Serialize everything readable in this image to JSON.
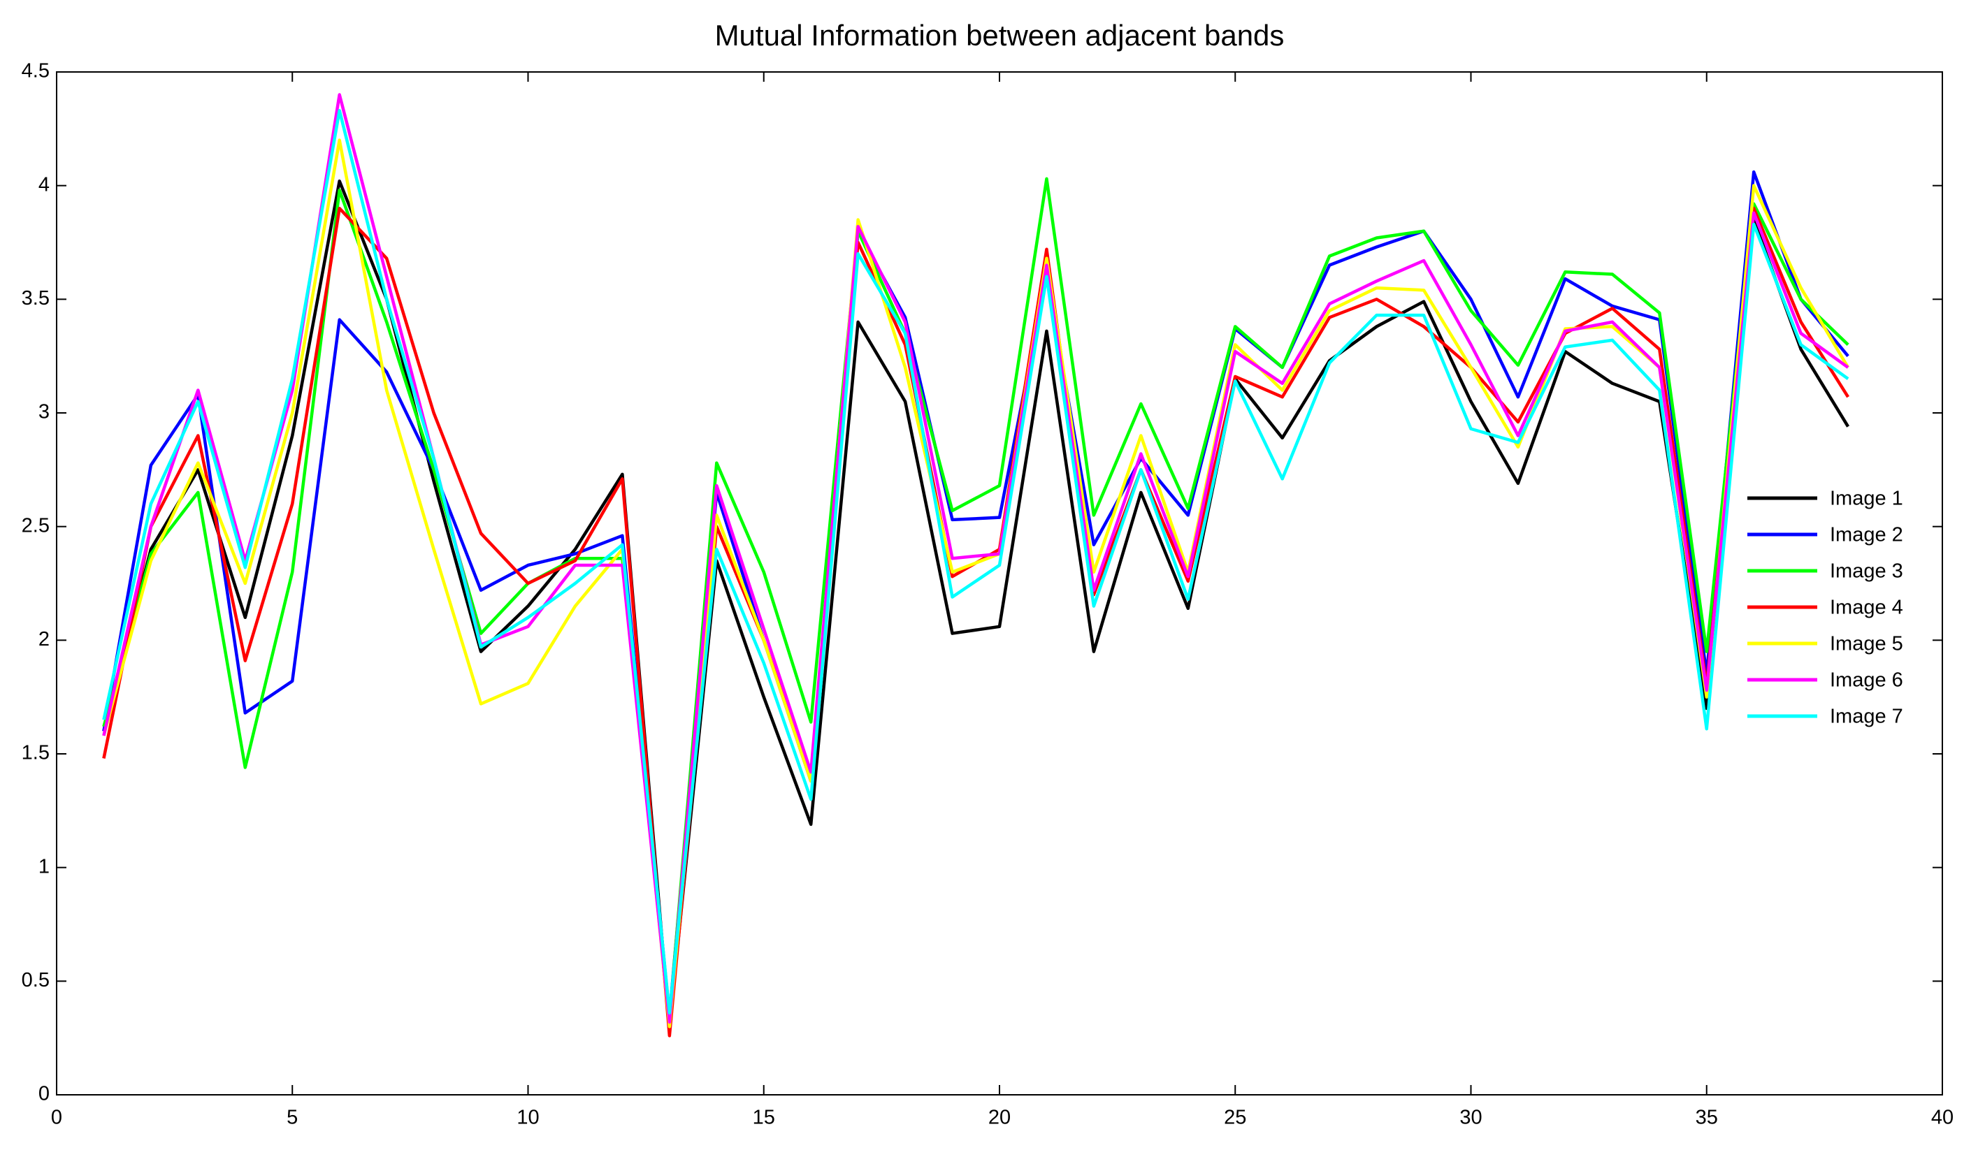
{
  "chart_data": {
    "type": "line",
    "title": "Mutual Information between adjacent bands",
    "x": [
      1,
      2,
      3,
      4,
      5,
      6,
      7,
      8,
      9,
      10,
      11,
      12,
      13,
      14,
      15,
      16,
      17,
      18,
      19,
      20,
      21,
      22,
      23,
      24,
      25,
      26,
      27,
      28,
      29,
      30,
      31,
      32,
      33,
      34,
      35,
      36,
      37,
      38
    ],
    "series": [
      {
        "name": "Image 1",
        "color": "#000000",
        "values": [
          1.6,
          2.4,
          2.75,
          2.1,
          2.9,
          4.02,
          3.5,
          2.7,
          1.95,
          2.15,
          2.4,
          2.73,
          0.3,
          2.35,
          1.75,
          1.19,
          3.4,
          3.05,
          2.03,
          2.06,
          3.36,
          1.95,
          2.65,
          2.14,
          3.15,
          2.89,
          3.23,
          3.38,
          3.49,
          3.05,
          2.69,
          3.27,
          3.13,
          3.05,
          1.7,
          3.85,
          3.28,
          2.94
        ]
      },
      {
        "name": "Image 2",
        "color": "#0000ff",
        "values": [
          1.6,
          2.77,
          3.08,
          1.68,
          1.82,
          3.41,
          3.18,
          2.75,
          2.22,
          2.33,
          2.38,
          2.46,
          0.35,
          2.65,
          2.0,
          1.38,
          3.8,
          3.42,
          2.53,
          2.54,
          3.6,
          2.42,
          2.8,
          2.55,
          3.37,
          3.2,
          3.65,
          3.73,
          3.8,
          3.5,
          3.07,
          3.59,
          3.47,
          3.41,
          1.85,
          4.06,
          3.5,
          3.25
        ]
      },
      {
        "name": "Image 3",
        "color": "#00ff00",
        "values": [
          1.62,
          2.38,
          2.65,
          1.44,
          2.3,
          3.98,
          3.4,
          2.75,
          2.03,
          2.25,
          2.36,
          2.36,
          0.33,
          2.78,
          2.3,
          1.64,
          3.8,
          3.35,
          2.57,
          2.68,
          4.03,
          2.55,
          3.04,
          2.58,
          3.38,
          3.2,
          3.69,
          3.77,
          3.8,
          3.45,
          3.21,
          3.62,
          3.61,
          3.44,
          1.95,
          3.92,
          3.5,
          3.3
        ]
      },
      {
        "name": "Image 4",
        "color": "#ff0000",
        "values": [
          1.48,
          2.5,
          2.9,
          1.91,
          2.6,
          3.9,
          3.68,
          3.0,
          2.47,
          2.25,
          2.35,
          2.71,
          0.26,
          2.5,
          2.0,
          1.4,
          3.75,
          3.3,
          2.28,
          2.4,
          3.72,
          2.2,
          2.75,
          2.26,
          3.16,
          3.07,
          3.42,
          3.5,
          3.38,
          3.2,
          2.96,
          3.35,
          3.46,
          3.28,
          1.8,
          3.9,
          3.4,
          3.07
        ]
      },
      {
        "name": "Image 5",
        "color": "#ffff00",
        "values": [
          1.58,
          2.35,
          2.78,
          2.25,
          3.0,
          4.2,
          3.1,
          2.4,
          1.72,
          1.81,
          2.15,
          2.4,
          0.3,
          2.55,
          2.0,
          1.38,
          3.85,
          3.2,
          2.3,
          2.38,
          3.68,
          2.3,
          2.9,
          2.3,
          3.3,
          3.1,
          3.45,
          3.55,
          3.54,
          3.2,
          2.85,
          3.37,
          3.38,
          3.2,
          1.75,
          4.0,
          3.55,
          3.2
        ]
      },
      {
        "name": "Image 6",
        "color": "#ff00ff",
        "values": [
          1.58,
          2.5,
          3.1,
          2.35,
          3.1,
          4.4,
          3.6,
          2.8,
          1.98,
          2.06,
          2.33,
          2.33,
          0.32,
          2.68,
          2.05,
          1.42,
          3.82,
          3.4,
          2.36,
          2.38,
          3.65,
          2.22,
          2.82,
          2.28,
          3.27,
          3.13,
          3.48,
          3.58,
          3.67,
          3.3,
          2.9,
          3.36,
          3.4,
          3.2,
          1.78,
          3.88,
          3.35,
          3.2
        ]
      },
      {
        "name": "Image 7",
        "color": "#00ffff",
        "values": [
          1.65,
          2.6,
          3.05,
          2.32,
          3.15,
          4.33,
          3.5,
          2.8,
          1.97,
          2.1,
          2.25,
          2.42,
          0.36,
          2.4,
          1.9,
          1.3,
          3.7,
          3.35,
          2.19,
          2.33,
          3.6,
          2.15,
          2.75,
          2.18,
          3.14,
          2.71,
          3.22,
          3.43,
          3.43,
          2.93,
          2.87,
          3.29,
          3.32,
          3.1,
          1.61,
          3.83,
          3.3,
          3.15
        ]
      }
    ],
    "xlim": [
      0,
      40
    ],
    "xticks": [
      0,
      5,
      10,
      15,
      20,
      25,
      30,
      35,
      40
    ],
    "ylim": [
      0,
      4.5
    ],
    "yticks": [
      0,
      0.5,
      1,
      1.5,
      2,
      2.5,
      3,
      3.5,
      4,
      4.5
    ],
    "legend": "right"
  }
}
